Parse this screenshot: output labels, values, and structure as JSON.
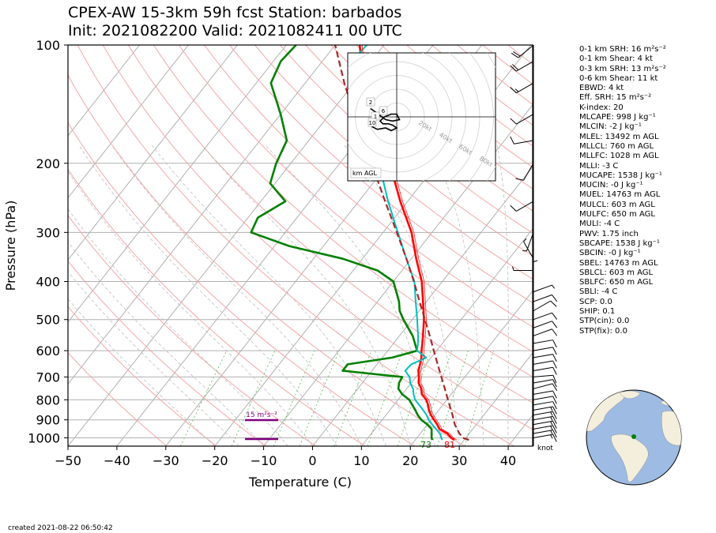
{
  "title": {
    "line1": "CPEX-AW 15-3km  59h fcst  Station: barbados",
    "line2": "Init: 2021082200  Valid: 2021082411 00 UTC"
  },
  "footer": "created 2021-08-22 06:50:42",
  "inset": {
    "label": "km AGL",
    "ring_labels": [
      "20kt",
      "40kt",
      "60kt",
      "80kt"
    ],
    "height_labels": [
      "2",
      "6",
      "1",
      "10"
    ]
  },
  "srh_marker": "15 m²s⁻²",
  "surface_labels": {
    "dewpoint": "73",
    "temperature": "81"
  },
  "barb_unit": "knot",
  "stats": [
    "0-1 km SRH: 16 m²s⁻²",
    "0-1 km Shear: 4 kt",
    "0-3 km SRH: 13 m²s⁻²",
    "0-6 km Shear: 11 kt",
    "EBWD: 4 kt",
    "Eff. SRH: 15 m²s⁻²",
    "K-index: 20",
    "MLCAPE: 998 J kg⁻¹",
    "MLCIN: -2 J kg⁻¹",
    "MLEL: 13492 m AGL",
    "MLLCL: 760 m AGL",
    "MLLFC: 1028 m AGL",
    "MLLI: -3 C",
    "MUCAPE: 1538 J kg⁻¹",
    "MUCIN: -0 J kg⁻¹",
    "MUEL: 14763 m AGL",
    "MULCL: 603 m AGL",
    "MULFC: 650 m AGL",
    "MULI: -4 C",
    "PWV: 1.75 inch",
    "SBCAPE: 1538 J kg⁻¹",
    "SBCIN: -0 J kg⁻¹",
    "SBEL: 14763 m AGL",
    "SBLCL: 603 m AGL",
    "SBLFC: 650 m AGL",
    "SBLI: -4 C",
    "SCP: 0.0",
    "SHIP: 0.1",
    "STP(cin): 0.0",
    "STP(fix): 0.0"
  ],
  "chart_data": {
    "type": "line",
    "xlabel": "Temperature (C)",
    "ylabel": "Pressure (hPa)",
    "xlim": [
      -50,
      45
    ],
    "ylim": [
      1050,
      100
    ],
    "y_scale": "log",
    "skew": "skew-T log-p",
    "xticks": [
      -50,
      -40,
      -30,
      -20,
      -10,
      0,
      10,
      20,
      30,
      40
    ],
    "yticks": [
      100,
      200,
      300,
      400,
      500,
      600,
      700,
      800,
      900,
      1000
    ],
    "series": [
      {
        "color": "#ff0000",
        "data": [
          [
            1013,
            28
          ],
          [
            1000,
            27
          ],
          [
            975,
            25.5
          ],
          [
            950,
            23.2
          ],
          [
            925,
            22
          ],
          [
            900,
            20.6
          ],
          [
            875,
            19.2
          ],
          [
            850,
            18
          ],
          [
            825,
            17
          ],
          [
            800,
            15.8
          ],
          [
            775,
            14
          ],
          [
            750,
            13
          ],
          [
            725,
            11.5
          ],
          [
            700,
            10.6
          ],
          [
            675,
            9.5
          ],
          [
            650,
            8.8
          ],
          [
            625,
            8
          ],
          [
            600,
            6.9
          ],
          [
            575,
            5.9
          ],
          [
            550,
            4.8
          ],
          [
            500,
            2.4
          ],
          [
            450,
            -0.7
          ],
          [
            400,
            -4.2
          ],
          [
            350,
            -9
          ],
          [
            300,
            -14.2
          ],
          [
            250,
            -21.5
          ],
          [
            200,
            -29.8
          ],
          [
            175,
            -35
          ],
          [
            150,
            -40.5
          ],
          [
            125,
            -48
          ],
          [
            110,
            -52
          ],
          [
            100,
            -55
          ]
        ]
      },
      {
        "color": "#008000",
        "data": [
          [
            1013,
            23.5
          ],
          [
            1000,
            23
          ],
          [
            975,
            22.3
          ],
          [
            950,
            21.6
          ],
          [
            925,
            20
          ],
          [
            900,
            18
          ],
          [
            875,
            16.5
          ],
          [
            850,
            15.2
          ],
          [
            800,
            12.3
          ],
          [
            775,
            10
          ],
          [
            750,
            8.3
          ],
          [
            725,
            7.5
          ],
          [
            700,
            7.2
          ],
          [
            675,
            -6
          ],
          [
            650,
            -6
          ],
          [
            625,
            2
          ],
          [
            600,
            6
          ],
          [
            550,
            2.7
          ],
          [
            500,
            -1.8
          ],
          [
            475,
            -4
          ],
          [
            450,
            -5.6
          ],
          [
            400,
            -10
          ],
          [
            375,
            -15
          ],
          [
            350,
            -24
          ],
          [
            325,
            -37
          ],
          [
            300,
            -47
          ],
          [
            275,
            -48
          ],
          [
            250,
            -45
          ],
          [
            225,
            -51
          ],
          [
            200,
            -53
          ],
          [
            175,
            -54.5
          ],
          [
            150,
            -60
          ],
          [
            125,
            -67
          ],
          [
            110,
            -68.5
          ],
          [
            100,
            -68
          ]
        ]
      },
      {
        "color": "#00bfbf",
        "data": [
          [
            1013,
            25.5
          ],
          [
            1000,
            25
          ],
          [
            975,
            24
          ],
          [
            950,
            22.5
          ],
          [
            925,
            21
          ],
          [
            900,
            19.5
          ],
          [
            875,
            18.3
          ],
          [
            850,
            16.8
          ],
          [
            800,
            13.5
          ],
          [
            775,
            12.3
          ],
          [
            750,
            11.3
          ],
          [
            725,
            9.8
          ],
          [
            700,
            8.7
          ],
          [
            675,
            6.8
          ],
          [
            650,
            7
          ],
          [
            625,
            9
          ],
          [
            600,
            6
          ],
          [
            575,
            5
          ],
          [
            550,
            3.8
          ],
          [
            500,
            1
          ],
          [
            450,
            -2.2
          ],
          [
            400,
            -5.7
          ],
          [
            350,
            -11
          ],
          [
            300,
            -17
          ],
          [
            250,
            -24
          ],
          [
            200,
            -32
          ],
          [
            175,
            -37.8
          ],
          [
            150,
            -43.5
          ],
          [
            125,
            -51
          ],
          [
            110,
            -54
          ],
          [
            100,
            -53.5
          ]
        ]
      },
      {
        "color": "#a52a2a",
        "style": "dashed",
        "data": [
          [
            1013,
            31
          ],
          [
            1000,
            29.4
          ],
          [
            975,
            28
          ],
          [
            950,
            26.8
          ],
          [
            925,
            25.6
          ],
          [
            900,
            24.6
          ],
          [
            875,
            23.6
          ],
          [
            850,
            22.5
          ],
          [
            800,
            20.2
          ],
          [
            750,
            17.8
          ],
          [
            700,
            15.2
          ],
          [
            650,
            12.4
          ],
          [
            600,
            9.4
          ],
          [
            550,
            6.2
          ],
          [
            500,
            2.6
          ],
          [
            450,
            -1.4
          ],
          [
            400,
            -5.8
          ],
          [
            350,
            -11
          ],
          [
            300,
            -17.2
          ],
          [
            250,
            -24.6
          ],
          [
            200,
            -33.5
          ],
          [
            150,
            -45
          ],
          [
            125,
            -52
          ],
          [
            100,
            -60
          ]
        ]
      }
    ],
    "hodograph": {
      "range_kt": 80,
      "rings_kt": [
        10,
        20,
        30,
        40,
        50,
        60,
        70,
        80
      ],
      "points": [
        [
          -18,
          -7
        ],
        [
          -14,
          -9
        ],
        [
          -8,
          -8
        ],
        [
          -4,
          -10
        ],
        [
          0,
          -8
        ],
        [
          -3,
          -6
        ],
        [
          -6,
          -5
        ],
        [
          -10,
          -5
        ],
        [
          -12,
          -3
        ],
        [
          -9,
          0
        ],
        [
          -4,
          2
        ],
        [
          0,
          2
        ],
        [
          2,
          -2
        ],
        [
          -3,
          -3
        ],
        [
          -8,
          -2
        ],
        [
          -12,
          1
        ],
        [
          -16,
          4
        ],
        [
          -19,
          6
        ]
      ]
    },
    "wind_barbs": {
      "unit": "knot",
      "levels": [
        {
          "p": 1000,
          "spd": 15,
          "dir": 80
        },
        {
          "p": 975,
          "spd": 15,
          "dir": 80
        },
        {
          "p": 950,
          "spd": 15,
          "dir": 80
        },
        {
          "p": 925,
          "spd": 15,
          "dir": 80
        },
        {
          "p": 900,
          "spd": 15,
          "dir": 80
        },
        {
          "p": 875,
          "spd": 15,
          "dir": 80
        },
        {
          "p": 850,
          "spd": 15,
          "dir": 80
        },
        {
          "p": 825,
          "spd": 10,
          "dir": 80
        },
        {
          "p": 800,
          "spd": 10,
          "dir": 80
        },
        {
          "p": 775,
          "spd": 10,
          "dir": 80
        },
        {
          "p": 750,
          "spd": 10,
          "dir": 75
        },
        {
          "p": 725,
          "spd": 10,
          "dir": 80
        },
        {
          "p": 700,
          "spd": 10,
          "dir": 85
        },
        {
          "p": 675,
          "spd": 10,
          "dir": 80
        },
        {
          "p": 650,
          "spd": 10,
          "dir": 80
        },
        {
          "p": 625,
          "spd": 10,
          "dir": 80
        },
        {
          "p": 600,
          "spd": 10,
          "dir": 80
        },
        {
          "p": 575,
          "spd": 10,
          "dir": 80
        },
        {
          "p": 550,
          "spd": 10,
          "dir": 70
        },
        {
          "p": 525,
          "spd": 10,
          "dir": 70
        },
        {
          "p": 500,
          "spd": 10,
          "dir": 70
        },
        {
          "p": 475,
          "spd": 10,
          "dir": 60
        },
        {
          "p": 450,
          "spd": 10,
          "dir": 70
        },
        {
          "p": 425,
          "spd": 5,
          "dir": 70
        },
        {
          "p": 400,
          "spd": 5,
          "dir": 0
        },
        {
          "p": 375,
          "spd": 5,
          "dir": 270
        },
        {
          "p": 350,
          "spd": 5,
          "dir": 330
        },
        {
          "p": 300,
          "spd": 5,
          "dir": 200
        },
        {
          "p": 250,
          "spd": 10,
          "dir": 240
        },
        {
          "p": 200,
          "spd": 10,
          "dir": 210
        },
        {
          "p": 175,
          "spd": 10,
          "dir": 260
        },
        {
          "p": 150,
          "spd": 10,
          "dir": 240
        },
        {
          "p": 125,
          "spd": 15,
          "dir": 240
        },
        {
          "p": 110,
          "spd": 20,
          "dir": 240
        },
        {
          "p": 100,
          "spd": 20,
          "dir": 230
        }
      ]
    }
  }
}
